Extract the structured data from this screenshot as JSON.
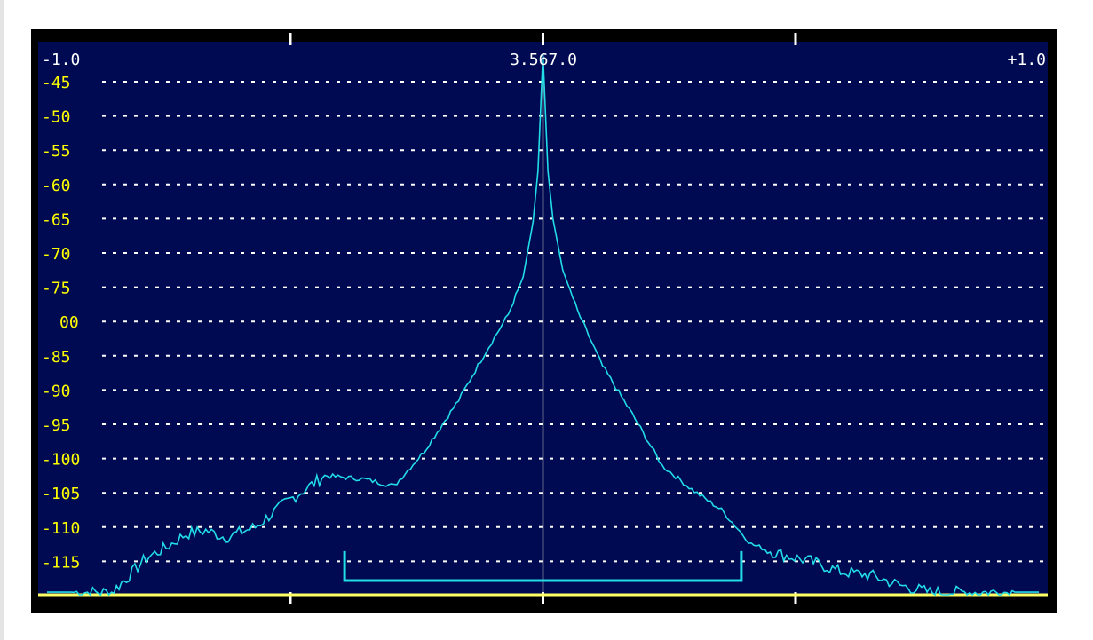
{
  "spectrum_display": {
    "center_frequency_label": "3.567.0",
    "left_offset_label": "-1.0",
    "right_offset_label": "+1.0",
    "db_scale_labels": [
      "-45",
      "-50",
      "-55",
      "-60",
      "-65",
      "-70",
      "-75",
      "00",
      "-85",
      "-90",
      "-95",
      "-100",
      "-105",
      "-110",
      "-115"
    ]
  },
  "chart_data": {
    "type": "line",
    "title": "",
    "xlabel": "",
    "ylabel": "",
    "xlim": [
      -1.0,
      1.0
    ],
    "ylim": [
      -120,
      -40
    ],
    "grid": true,
    "series": [
      {
        "color": "#22dce6",
        "x": [
          -1.0,
          -0.87,
          -0.84,
          -0.8,
          -0.76,
          -0.72,
          -0.68,
          -0.64,
          -0.58,
          -0.52,
          -0.44,
          -0.36,
          -0.3,
          -0.24,
          -0.17,
          -0.12,
          -0.07,
          -0.04,
          -0.02,
          -0.01,
          0.0,
          0.01,
          0.02,
          0.04,
          0.07,
          0.12,
          0.18,
          0.24,
          0.3,
          0.36,
          0.42,
          0.48,
          0.54,
          0.6,
          0.66,
          0.72,
          0.78,
          1.0
        ],
        "y": [
          -119.5,
          -119.5,
          -117.5,
          -114.5,
          -113.0,
          -111.0,
          -110.5,
          -111.5,
          -110.0,
          -106.5,
          -102.5,
          -103.0,
          -104.0,
          -99.0,
          -91.5,
          -85.0,
          -79.0,
          -73.5,
          -65.5,
          -58.0,
          -41.0,
          -58.0,
          -65.0,
          -72.5,
          -78.5,
          -86.5,
          -93.5,
          -101.0,
          -104.5,
          -107.5,
          -112.5,
          -114.0,
          -115.0,
          -116.5,
          -117.0,
          -118.5,
          -119.5,
          -119.5
        ]
      }
    ],
    "passband": {
      "x_start": -0.4,
      "x_end": 0.4,
      "color": "#22dce6"
    },
    "baseline_color": "#ffff66",
    "grid_color": "#ffffff",
    "label_color": "#ffff00",
    "background_color": "#000a52"
  }
}
